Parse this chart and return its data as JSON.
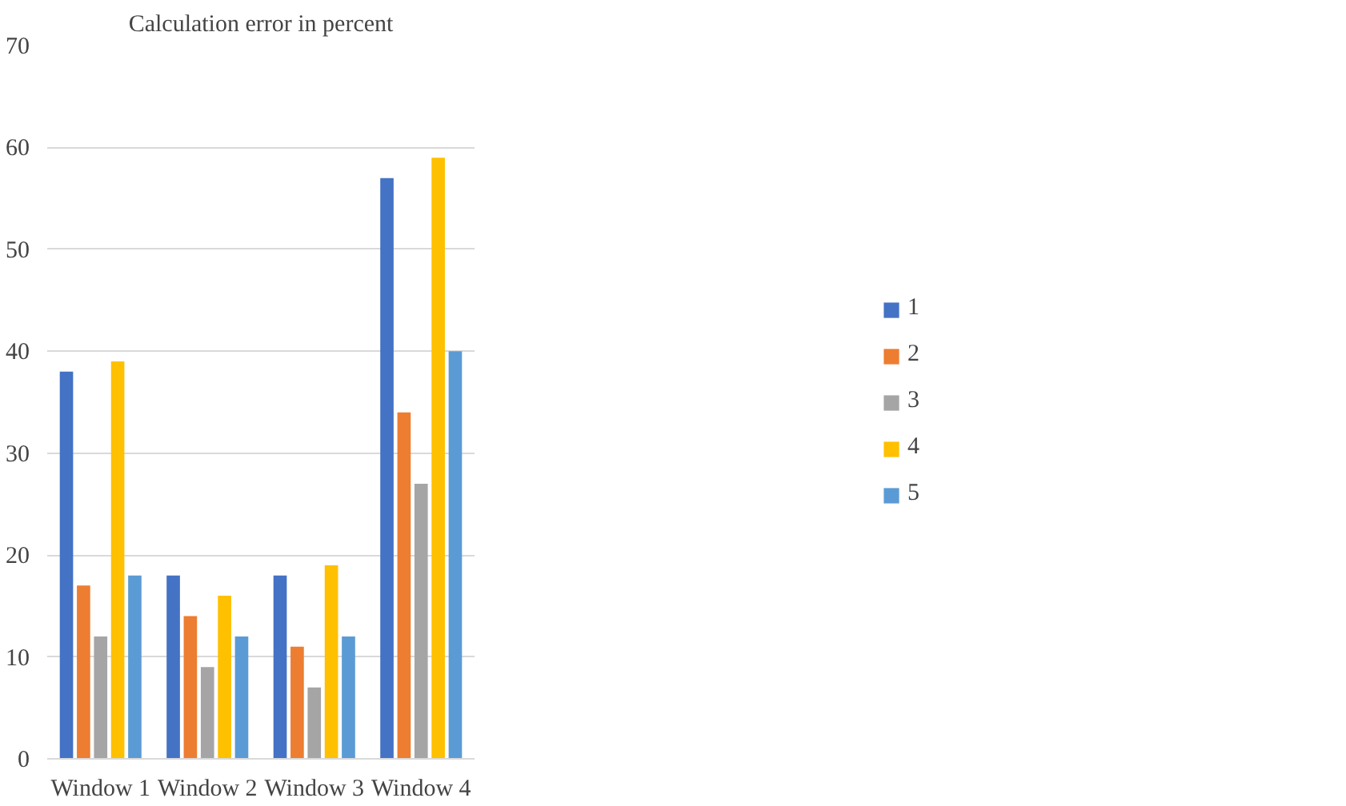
{
  "chart_data": {
    "type": "bar",
    "title": "Calculation error in percent",
    "categories": [
      "Window 1",
      "Window 2",
      "Window 3",
      "Window 4"
    ],
    "series": [
      {
        "name": "1",
        "color": "#4472c4",
        "values": [
          38,
          18,
          18,
          57
        ]
      },
      {
        "name": "2",
        "color": "#ed7d31",
        "values": [
          17,
          14,
          11,
          34
        ]
      },
      {
        "name": "3",
        "color": "#a5a5a5",
        "values": [
          12,
          9,
          7,
          27
        ]
      },
      {
        "name": "4",
        "color": "#ffc000",
        "values": [
          39,
          16,
          19,
          59
        ]
      },
      {
        "name": "5",
        "color": "#5b9bd5",
        "values": [
          18,
          12,
          12,
          40
        ]
      }
    ],
    "ylim": [
      0,
      70
    ],
    "yticks": [
      0,
      10,
      20,
      30,
      40,
      50,
      60,
      70
    ],
    "grid": "y",
    "legend": "right"
  }
}
